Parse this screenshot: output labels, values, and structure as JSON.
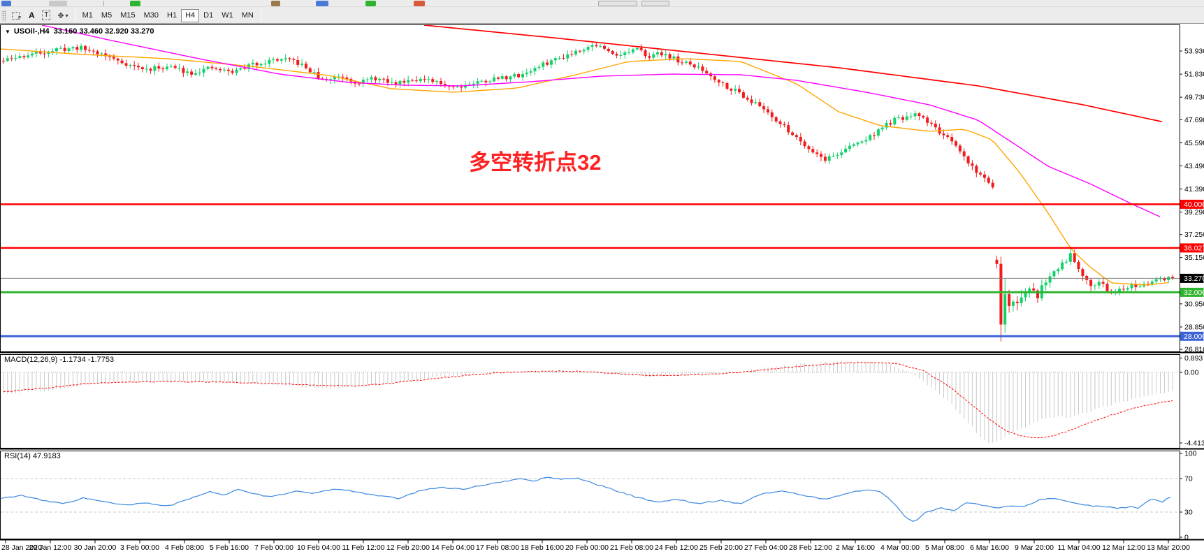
{
  "toolbar": {
    "icon_f": "F",
    "icon_a": "A",
    "icon_t": "T",
    "icon_shapes": "✥",
    "caret": "▾",
    "timeframes": [
      "M1",
      "M5",
      "M15",
      "M30",
      "H1",
      "H4",
      "D1",
      "W1",
      "MN"
    ],
    "active_timeframe": "H4"
  },
  "chart": {
    "title_arrow": "▼",
    "title": "USOil-,H4  33.160 33.460 32.920 33.270",
    "annotation_text": "多空转折点32",
    "annotation_color": "#FF2121",
    "macd_label": "MACD(12,26,9) -1.1734 -1.7753",
    "rsi_label": "RSI(14) 47.9183"
  },
  "axes": {
    "price_ticks": [
      {
        "label": "53.930",
        "p": 53.93
      },
      {
        "label": "51.830",
        "p": 51.83
      },
      {
        "label": "49.730",
        "p": 49.73
      },
      {
        "label": "47.690",
        "p": 47.69
      },
      {
        "label": "45.590",
        "p": 45.59
      },
      {
        "label": "43.490",
        "p": 43.49
      },
      {
        "label": "41.390",
        "p": 41.39
      },
      {
        "label": "39.290",
        "p": 39.29
      },
      {
        "label": "37.250",
        "p": 37.25
      },
      {
        "label": "35.150",
        "p": 35.15
      },
      {
        "label": "30.950",
        "p": 30.95
      },
      {
        "label": "28.850",
        "p": 28.85
      },
      {
        "label": "26.810",
        "p": 26.81
      }
    ],
    "price_levels": [
      {
        "label": "40.000",
        "p": 40.0,
        "bg": "#FF0000",
        "line": "#FF0000",
        "lw": 2.5
      },
      {
        "label": "36.027",
        "p": 36.027,
        "bg": "#FF0000",
        "line": "#FF0000",
        "lw": 2.5
      },
      {
        "label": "33.270",
        "p": 33.27,
        "bg": "#000000",
        "line": "#808080",
        "lw": 1
      },
      {
        "label": "32.000",
        "p": 32.0,
        "bg": "#2FB42F",
        "line": "#2FB42F",
        "lw": 3
      },
      {
        "label": "28.000",
        "p": 28.0,
        "bg": "#3C64D8",
        "line": "#3C64D8",
        "lw": 3
      }
    ],
    "macd_ticks": [
      {
        "label": "0.893",
        "v": 0.893
      },
      {
        "label": "0.00",
        "v": 0
      },
      {
        "label": "-4.4131",
        "v": -4.4131
      }
    ],
    "rsi_ticks": [
      {
        "label": "100",
        "v": 100
      },
      {
        "label": "70",
        "v": 70
      },
      {
        "label": "30",
        "v": 30
      },
      {
        "label": "0",
        "v": 0
      }
    ],
    "rsi_levels": [
      70,
      30
    ],
    "time_labels": [
      "28 Jan 2020",
      "29 Jan 12:00",
      "30 Jan 20:00",
      "3 Feb 00:00",
      "4 Feb 08:00",
      "5 Feb 16:00",
      "7 Feb 00:00",
      "10 Feb 04:00",
      "11 Feb 12:00",
      "12 Feb 20:00",
      "14 Feb 04:00",
      "17 Feb 08:00",
      "18 Feb 16:00",
      "20 Feb 00:00",
      "21 Feb 08:00",
      "24 Feb 12:00",
      "25 Feb 20:00",
      "27 Feb 04:00",
      "28 Feb 12:00",
      "2 Mar 16:00",
      "4 Mar 00:00",
      "5 Mar 08:00",
      "6 Mar 16:00",
      "9 Mar 20:00",
      "11 Mar 04:00",
      "12 Mar 12:00",
      "13 Mar 20:00"
    ]
  },
  "chart_data": {
    "type": "candlestick",
    "symbol": "USOil",
    "timeframe": "H4",
    "ohlc_current": {
      "open": 33.16,
      "high": 33.46,
      "low": 32.92,
      "close": 33.27
    },
    "price_axis_range": [
      26.5,
      56.3
    ],
    "horizontal_lines": [
      40.0,
      36.027,
      33.27,
      32.0,
      28.0
    ],
    "close_anchors": [
      [
        0,
        52.98
      ],
      [
        40,
        53.61
      ],
      [
        75,
        54.0
      ],
      [
        110,
        54.25
      ],
      [
        140,
        53.74
      ],
      [
        175,
        52.85
      ],
      [
        205,
        52.22
      ],
      [
        240,
        52.53
      ],
      [
        270,
        51.96
      ],
      [
        300,
        52.34
      ],
      [
        330,
        52.02
      ],
      [
        360,
        52.72
      ],
      [
        395,
        53.17
      ],
      [
        420,
        52.98
      ],
      [
        440,
        52.22
      ],
      [
        460,
        51.2
      ],
      [
        485,
        51.71
      ],
      [
        510,
        51.07
      ],
      [
        535,
        51.45
      ],
      [
        560,
        50.95
      ],
      [
        590,
        51.45
      ],
      [
        620,
        51.07
      ],
      [
        650,
        50.69
      ],
      [
        680,
        51.07
      ],
      [
        710,
        51.45
      ],
      [
        740,
        51.71
      ],
      [
        760,
        52.22
      ],
      [
        785,
        52.98
      ],
      [
        810,
        53.61
      ],
      [
        835,
        54.25
      ],
      [
        852,
        54.5
      ],
      [
        868,
        53.87
      ],
      [
        888,
        53.61
      ],
      [
        908,
        54.06
      ],
      [
        928,
        53.49
      ],
      [
        948,
        53.74
      ],
      [
        970,
        52.98
      ],
      [
        995,
        52.47
      ],
      [
        1015,
        51.71
      ],
      [
        1035,
        50.82
      ],
      [
        1055,
        50.18
      ],
      [
        1075,
        49.29
      ],
      [
        1095,
        48.53
      ],
      [
        1115,
        47.26
      ],
      [
        1135,
        46.25
      ],
      [
        1158,
        44.98
      ],
      [
        1178,
        44.09
      ],
      [
        1198,
        44.6
      ],
      [
        1218,
        45.36
      ],
      [
        1240,
        45.99
      ],
      [
        1258,
        46.88
      ],
      [
        1278,
        47.64
      ],
      [
        1298,
        47.9
      ],
      [
        1312,
        48.15
      ],
      [
        1326,
        47.52
      ],
      [
        1340,
        46.75
      ],
      [
        1354,
        45.93
      ],
      [
        1368,
        45.04
      ],
      [
        1382,
        43.96
      ],
      [
        1396,
        42.94
      ],
      [
        1408,
        42.25
      ],
      [
        1422,
        41.6,
        1.0
      ],
      [
        1425,
        33.16,
        1.1
      ],
      [
        1431,
        28.85,
        4.6
      ],
      [
        1438,
        31.6,
        3.4
      ],
      [
        1445,
        30.63,
        2.0
      ],
      [
        1452,
        31.39,
        1.6
      ],
      [
        1459,
        31.13,
        1.5
      ],
      [
        1467,
        31.9,
        1.3
      ],
      [
        1475,
        32.28,
        1.2
      ],
      [
        1483,
        31.64,
        1.2
      ],
      [
        1491,
        32.91,
        1.0
      ],
      [
        1499,
        33.29,
        1.1
      ],
      [
        1507,
        33.93,
        1.0
      ],
      [
        1515,
        34.44,
        1.0
      ],
      [
        1523,
        34.94,
        1.0
      ],
      [
        1530,
        35.52,
        1.0
      ],
      [
        1537,
        34.82,
        0.9
      ],
      [
        1545,
        33.8,
        1.0
      ],
      [
        1553,
        33.29,
        0.9
      ],
      [
        1561,
        32.59,
        1.0
      ],
      [
        1569,
        32.91,
        0.8
      ],
      [
        1577,
        32.66,
        0.8
      ],
      [
        1585,
        32.02,
        0.9
      ],
      [
        1591,
        31.51,
        1.1
      ],
      [
        1599,
        32.53,
        0.9
      ],
      [
        1607,
        32.4,
        0.8
      ],
      [
        1615,
        32.66,
        0.8
      ],
      [
        1623,
        32.47,
        0.8
      ],
      [
        1631,
        32.72,
        0.6
      ],
      [
        1639,
        32.85,
        0.6
      ],
      [
        1647,
        32.97,
        0.6
      ],
      [
        1655,
        33.35,
        0.7
      ],
      [
        1663,
        32.85,
        0.6
      ],
      [
        1670,
        33.35,
        0.6
      ],
      [
        1677,
        33.27,
        0.5
      ]
    ],
    "ma_orange": [
      [
        0,
        54.12
      ],
      [
        120,
        53.61
      ],
      [
        240,
        53.23
      ],
      [
        360,
        52.53
      ],
      [
        470,
        51.71
      ],
      [
        560,
        50.5
      ],
      [
        650,
        50.18
      ],
      [
        740,
        50.56
      ],
      [
        820,
        51.71
      ],
      [
        900,
        52.98
      ],
      [
        980,
        53.23
      ],
      [
        1060,
        52.98
      ],
      [
        1140,
        50.95
      ],
      [
        1200,
        48.41
      ],
      [
        1260,
        47.14
      ],
      [
        1330,
        46.63
      ],
      [
        1380,
        46.82
      ],
      [
        1420,
        45.86
      ],
      [
        1460,
        42.82
      ],
      [
        1500,
        39.2
      ],
      [
        1533,
        35.9
      ],
      [
        1560,
        34.31
      ],
      [
        1590,
        32.85
      ],
      [
        1640,
        32.66
      ],
      [
        1677,
        32.91
      ]
    ],
    "ma_magenta": [
      [
        60,
        56.28
      ],
      [
        160,
        54.88
      ],
      [
        280,
        53.29
      ],
      [
        400,
        51.83
      ],
      [
        500,
        51.07
      ],
      [
        580,
        50.82
      ],
      [
        660,
        50.76
      ],
      [
        760,
        51.14
      ],
      [
        860,
        51.64
      ],
      [
        960,
        51.83
      ],
      [
        1060,
        51.77
      ],
      [
        1140,
        51.26
      ],
      [
        1240,
        50.18
      ],
      [
        1330,
        49.04
      ],
      [
        1400,
        47.64
      ],
      [
        1450,
        45.55
      ],
      [
        1500,
        43.45
      ],
      [
        1560,
        41.86
      ],
      [
        1620,
        40.02
      ],
      [
        1666,
        38.69
      ]
    ],
    "ma_red": [
      [
        607,
        56.28
      ],
      [
        800,
        55.08
      ],
      [
        1000,
        53.74
      ],
      [
        1200,
        52.41
      ],
      [
        1400,
        50.76
      ],
      [
        1550,
        49.04
      ],
      [
        1667,
        47.45
      ]
    ],
    "macd": {
      "params": "12,26,9",
      "main": -1.1734,
      "signal": -1.7753,
      "min": -4.4131,
      "max": 0.893,
      "main_anchors": [
        [
          0,
          -1.35
        ],
        [
          80,
          -1.05
        ],
        [
          150,
          -0.62
        ],
        [
          220,
          -0.55
        ],
        [
          300,
          -0.6
        ],
        [
          380,
          -0.72
        ],
        [
          450,
          -0.95
        ],
        [
          470,
          -1.0
        ],
        [
          540,
          -0.8
        ],
        [
          600,
          -0.4
        ],
        [
          660,
          -0.12
        ],
        [
          700,
          0.02
        ],
        [
          760,
          0.05
        ],
        [
          800,
          0.1
        ],
        [
          840,
          0.02
        ],
        [
          880,
          -0.12
        ],
        [
          920,
          -0.25
        ],
        [
          960,
          -0.2
        ],
        [
          1000,
          -0.12
        ],
        [
          1040,
          0
        ],
        [
          1080,
          0.2
        ],
        [
          1130,
          0.45
        ],
        [
          1180,
          0.62
        ],
        [
          1230,
          0.68
        ],
        [
          1270,
          0.5
        ],
        [
          1300,
          0
        ],
        [
          1330,
          -0.9
        ],
        [
          1360,
          -2.0
        ],
        [
          1385,
          -3.2
        ],
        [
          1400,
          -4.0
        ],
        [
          1412,
          -4.41
        ],
        [
          1425,
          -4.3
        ],
        [
          1440,
          -4.0
        ],
        [
          1455,
          -3.6
        ],
        [
          1470,
          -3.3
        ],
        [
          1490,
          -2.95
        ],
        [
          1510,
          -2.75
        ],
        [
          1530,
          -2.8
        ],
        [
          1550,
          -2.55
        ],
        [
          1575,
          -2.2
        ],
        [
          1600,
          -1.9
        ],
        [
          1625,
          -1.6
        ],
        [
          1650,
          -1.35
        ],
        [
          1677,
          -1.17
        ]
      ],
      "signal_anchors": [
        [
          0,
          -1.22
        ],
        [
          60,
          -1.0
        ],
        [
          120,
          -0.72
        ],
        [
          180,
          -0.6
        ],
        [
          250,
          -0.58
        ],
        [
          320,
          -0.62
        ],
        [
          390,
          -0.7
        ],
        [
          450,
          -0.8
        ],
        [
          510,
          -0.85
        ],
        [
          560,
          -0.68
        ],
        [
          620,
          -0.38
        ],
        [
          680,
          -0.12
        ],
        [
          730,
          0.02
        ],
        [
          790,
          0.08
        ],
        [
          830,
          0.05
        ],
        [
          880,
          -0.08
        ],
        [
          930,
          -0.18
        ],
        [
          980,
          -0.18
        ],
        [
          1030,
          -0.08
        ],
        [
          1080,
          0.1
        ],
        [
          1130,
          0.32
        ],
        [
          1180,
          0.52
        ],
        [
          1230,
          0.62
        ],
        [
          1280,
          0.55
        ],
        [
          1320,
          0.1
        ],
        [
          1350,
          -0.7
        ],
        [
          1380,
          -1.7
        ],
        [
          1410,
          -2.8
        ],
        [
          1435,
          -3.6
        ],
        [
          1460,
          -4.0
        ],
        [
          1485,
          -4.1
        ],
        [
          1505,
          -4.0
        ],
        [
          1530,
          -3.6
        ],
        [
          1560,
          -3.1
        ],
        [
          1590,
          -2.65
        ],
        [
          1620,
          -2.25
        ],
        [
          1650,
          -1.95
        ],
        [
          1677,
          -1.78
        ]
      ]
    },
    "rsi": {
      "period": 14,
      "value": 47.9183,
      "anchors": [
        [
          0,
          46
        ],
        [
          30,
          50
        ],
        [
          60,
          44
        ],
        [
          90,
          40
        ],
        [
          120,
          47
        ],
        [
          150,
          42
        ],
        [
          180,
          38
        ],
        [
          210,
          41
        ],
        [
          240,
          37
        ],
        [
          270,
          45
        ],
        [
          300,
          55
        ],
        [
          320,
          50
        ],
        [
          340,
          57
        ],
        [
          360,
          52
        ],
        [
          390,
          48
        ],
        [
          420,
          55
        ],
        [
          450,
          52
        ],
        [
          480,
          58
        ],
        [
          510,
          54
        ],
        [
          540,
          50
        ],
        [
          570,
          46
        ],
        [
          600,
          55
        ],
        [
          630,
          60
        ],
        [
          660,
          57
        ],
        [
          690,
          62
        ],
        [
          720,
          66
        ],
        [
          745,
          70
        ],
        [
          765,
          67
        ],
        [
          785,
          72
        ],
        [
          805,
          69
        ],
        [
          825,
          71
        ],
        [
          850,
          64
        ],
        [
          880,
          56
        ],
        [
          910,
          48
        ],
        [
          940,
          42
        ],
        [
          970,
          45
        ],
        [
          1000,
          40
        ],
        [
          1030,
          44
        ],
        [
          1060,
          40
        ],
        [
          1090,
          52
        ],
        [
          1120,
          55
        ],
        [
          1150,
          50
        ],
        [
          1180,
          45
        ],
        [
          1210,
          52
        ],
        [
          1240,
          57
        ],
        [
          1260,
          54
        ],
        [
          1280,
          40
        ],
        [
          1295,
          25
        ],
        [
          1308,
          18
        ],
        [
          1325,
          30
        ],
        [
          1345,
          35
        ],
        [
          1365,
          32
        ],
        [
          1385,
          42
        ],
        [
          1405,
          38
        ],
        [
          1425,
          35
        ],
        [
          1445,
          37
        ],
        [
          1465,
          36
        ],
        [
          1485,
          44
        ],
        [
          1505,
          47
        ],
        [
          1530,
          42
        ],
        [
          1555,
          38
        ],
        [
          1580,
          36
        ],
        [
          1600,
          35
        ],
        [
          1615,
          36
        ],
        [
          1630,
          35
        ],
        [
          1645,
          44
        ],
        [
          1655,
          46
        ],
        [
          1662,
          40
        ],
        [
          1670,
          46
        ],
        [
          1677,
          47.92
        ]
      ]
    }
  },
  "colors": {
    "bull": "#12D16B",
    "bear": "#F21A1A",
    "ma_fast": "#FFA500",
    "ma_mid": "#FF00FF",
    "ma_slow": "#FF0000",
    "macd_hist": "#C9C9C9",
    "macd_signal": "#FF0000",
    "rsi": "#3A87E0",
    "axis_text": "#000000"
  }
}
